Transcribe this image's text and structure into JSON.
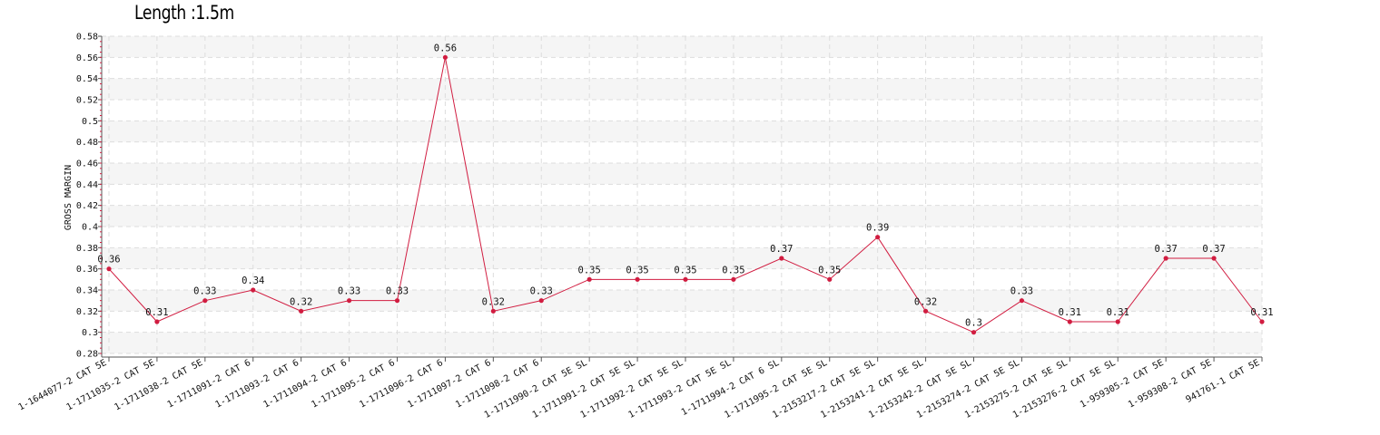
{
  "title": "Length :1.5m",
  "colors": {
    "series": "#d11c40",
    "grid": "#dddddd",
    "band": "#f5f5f5",
    "axis": "#555555"
  },
  "chart_data": {
    "type": "line",
    "title": "Length :1.5m",
    "xlabel": "",
    "ylabel": "GROSS MARGIN",
    "ylim": [
      0.28,
      0.58
    ],
    "ytick_step": 0.02,
    "ytick_labels": [
      "0.28",
      "0.3",
      "0.32",
      "0.34",
      "0.36",
      "0.38",
      "0.4",
      "0.42",
      "0.44",
      "0.46",
      "0.48",
      "0.5",
      "0.52",
      "0.54",
      "0.56",
      "0.58"
    ],
    "grid": true,
    "categories": [
      "1-1644077-2 CAT 5E",
      "1-1711035-2 CAT 5E",
      "1-1711038-2 CAT 5E",
      "1-1711091-2 CAT 6",
      "1-1711093-2 CAT 6",
      "1-1711094-2 CAT 6",
      "1-1711095-2 CAT 6",
      "1-1711096-2 CAT 6",
      "1-1711097-2 CAT 6",
      "1-1711098-2 CAT 6",
      "1-1711990-2 CAT 5E SL",
      "1-1711991-2 CAT 5E SL",
      "1-1711992-2 CAT 5E SL",
      "1-1711993-2 CAT 5E SL",
      "1-1711994-2 CAT 6 SL",
      "1-1711995-2 CAT 5E SL",
      "1-2153217-2 CAT 5E SL",
      "1-2153241-2 CAT 5E SL",
      "1-2153242-2 CAT 5E SL",
      "1-2153274-2 CAT 5E SL",
      "1-2153275-2 CAT 5E SL",
      "1-2153276-2 CAT 5E SL",
      "1-959305-2 CAT 5E",
      "1-959308-2 CAT 5E",
      "941761-1 CAT 5E"
    ],
    "series": [
      {
        "values": [
          0.36,
          0.31,
          0.33,
          0.34,
          0.32,
          0.33,
          0.33,
          0.56,
          0.32,
          0.33,
          0.35,
          0.35,
          0.35,
          0.35,
          0.37,
          0.35,
          0.39,
          0.32,
          0.3,
          0.33,
          0.31,
          0.31,
          0.37,
          0.37,
          0.31
        ],
        "labels": [
          "0.36",
          "0.31",
          "0.33",
          "0.34",
          "0.32",
          "0.33",
          "0.33",
          "0.56",
          "0.32",
          "0.33",
          "0.35",
          "0.35",
          "0.35",
          "0.35",
          "0.37",
          "0.35",
          "0.39",
          "0.32",
          "0.3",
          "0.33",
          "0.31",
          "0.31",
          "0.37",
          "0.37",
          "0.31"
        ]
      }
    ]
  }
}
